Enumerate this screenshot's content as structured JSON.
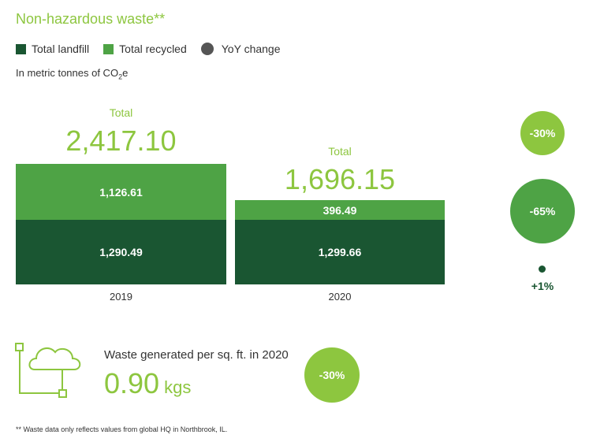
{
  "title": "Non-hazardous waste**",
  "legend": [
    {
      "label": "Total landfill",
      "color": "#1a5632",
      "shape": "square"
    },
    {
      "label": "Total recycled",
      "color": "#4ea345",
      "shape": "square"
    },
    {
      "label": "YoY change",
      "color": "#555555",
      "shape": "circle"
    }
  ],
  "units_prefix": "In metric tonnes of CO",
  "units_sub": "2",
  "units_suffix": "e",
  "chart_data": {
    "type": "bar",
    "stacked": true,
    "categories": [
      "2019",
      "2020"
    ],
    "series": [
      {
        "name": "Total landfill",
        "values": [
          1290.49,
          1299.66
        ],
        "labels": [
          "1,290.49",
          "1,299.66"
        ],
        "color": "#1a5632"
      },
      {
        "name": "Total recycled",
        "values": [
          1126.61,
          396.49
        ],
        "labels": [
          "1,126.61",
          "396.49"
        ],
        "color": "#4ea345"
      }
    ],
    "totals": [
      {
        "label": "Total",
        "value": "2,417.10"
      },
      {
        "label": "Total",
        "value": "1,696.15"
      }
    ],
    "yoy_change": [
      {
        "series": "Total",
        "label": "-30%",
        "value": -30,
        "color": "#8dc63f"
      },
      {
        "series": "Total recycled",
        "label": "-65%",
        "value": -65,
        "color": "#4ea345"
      },
      {
        "series": "Total landfill",
        "label": "+1%",
        "value": 1,
        "color": "#1a5632"
      }
    ]
  },
  "per_sqft": {
    "label": "Waste generated per sq. ft. in 2020",
    "value": "0.90",
    "unit": "kgs",
    "change": "-30%",
    "change_color": "#8dc63f"
  },
  "footnote": "** Waste data only reflects values from global HQ in Northbrook, IL."
}
